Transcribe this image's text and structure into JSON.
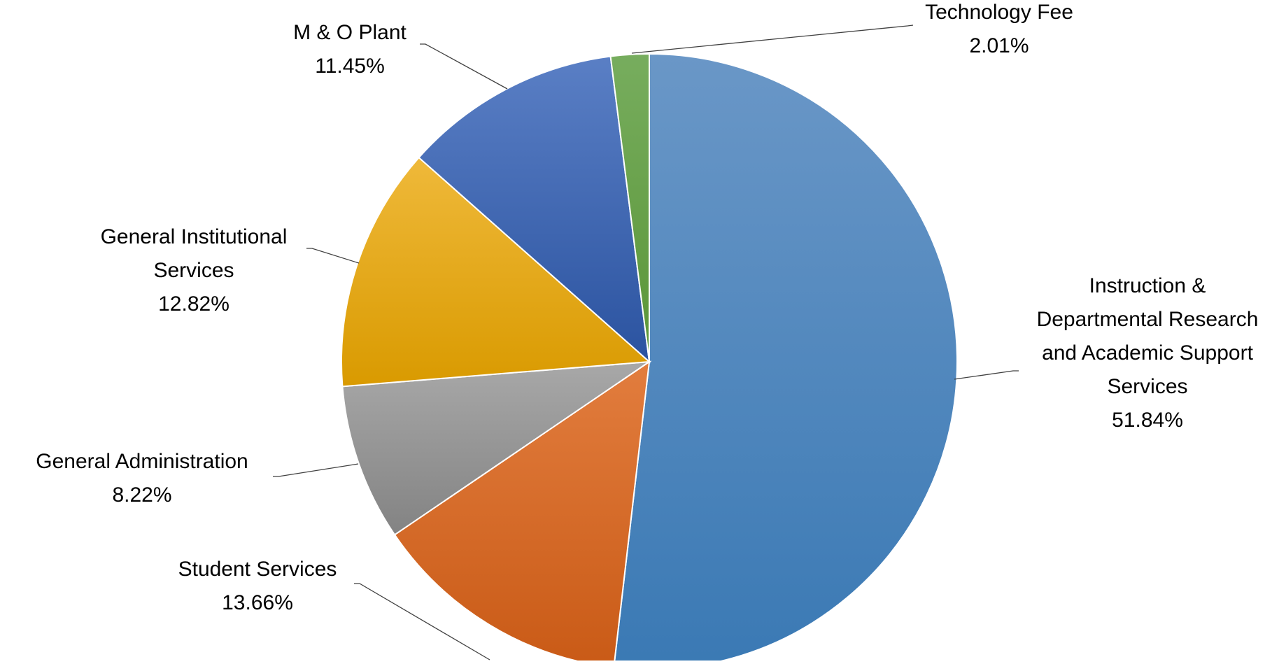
{
  "chart_data": {
    "type": "pie",
    "start_angle_deg": 0,
    "direction": "clockwise",
    "slices": [
      {
        "label_lines": [
          "Instruction &",
          "Departmental Research",
          "and Academic Support",
          "Services"
        ],
        "value_label": "51.84%",
        "value": 51.84,
        "color_light": "#6a97c7",
        "color_dark": "#3a79b4"
      },
      {
        "label_lines": [
          "Student Services"
        ],
        "value_label": "13.66%",
        "value": 13.66,
        "color_light": "#e27d3e",
        "color_dark": "#c95a16"
      },
      {
        "label_lines": [
          "General Administration"
        ],
        "value_label": "8.22%",
        "value": 8.22,
        "color_light": "#a8a8a8",
        "color_dark": "#838383"
      },
      {
        "label_lines": [
          "General Institutional",
          "Services"
        ],
        "value_label": "12.82%",
        "value": 12.82,
        "color_light": "#efb93a",
        "color_dark": "#d99a00"
      },
      {
        "label_lines": [
          "M & O Plant"
        ],
        "value_label": "11.45%",
        "value": 11.45,
        "color_light": "#5a7fc5",
        "color_dark": "#2b53a0"
      },
      {
        "label_lines": [
          "Technology Fee"
        ],
        "value_label": "2.01%",
        "value": 2.01,
        "color_light": "#77ad5e",
        "color_dark": "#5a9537"
      }
    ]
  }
}
